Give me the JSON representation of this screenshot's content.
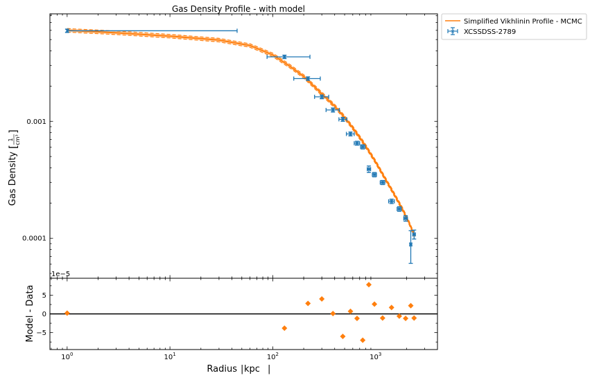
{
  "chart_data": [
    {
      "type": "scatter",
      "title": "Gas Density Profile - with model",
      "xlabel": "",
      "ylabel_main": "Gas Density",
      "ylabel_frac_num": "1",
      "ylabel_frac_den": "cm³",
      "xscale": "log",
      "yscale": "log",
      "xlim": [
        0.68,
        4000
      ],
      "ylim": [
        4.55e-05,
        0.0083
      ],
      "y_ticks": [
        {
          "value": 0.0001,
          "label": "0.0001"
        },
        {
          "value": 0.001,
          "label": "0.001"
        }
      ],
      "offset_label": "1e−5",
      "legend_position": "outside-top-right",
      "legend": {
        "model_label": "Simplified Vikhlinin Profile - MCMC",
        "data_label": "XCSSDSS-2789"
      },
      "colors": {
        "data": "#1f77b4",
        "model": "#ff7f0e",
        "axis": "#000000"
      },
      "data_series": {
        "name": "XCSSDSS-2789",
        "points": [
          {
            "x": 1.0,
            "y": 0.00595,
            "xlo": 1.0,
            "xhi": 45,
            "ylo": 0.00575,
            "yhi": 0.00615
          },
          {
            "x": 130,
            "y": 0.00356,
            "xlo": 88,
            "xhi": 230,
            "ylo": 0.00344,
            "yhi": 0.00368
          },
          {
            "x": 220,
            "y": 0.00232,
            "xlo": 160,
            "xhi": 290,
            "ylo": 0.00224,
            "yhi": 0.0024
          },
          {
            "x": 300,
            "y": 0.00162,
            "xlo": 255,
            "xhi": 350,
            "ylo": 0.00156,
            "yhi": 0.00168
          },
          {
            "x": 385,
            "y": 0.00125,
            "xlo": 330,
            "xhi": 445,
            "ylo": 0.0012,
            "yhi": 0.0013
          },
          {
            "x": 480,
            "y": 0.00104,
            "xlo": 440,
            "xhi": 525,
            "ylo": 0.001,
            "yhi": 0.00108
          },
          {
            "x": 570,
            "y": 0.00078,
            "xlo": 520,
            "xhi": 620,
            "ylo": 0.00075,
            "yhi": 0.00081
          },
          {
            "x": 660,
            "y": 0.00065,
            "xlo": 620,
            "xhi": 700,
            "ylo": 0.000625,
            "yhi": 0.000675
          },
          {
            "x": 750,
            "y": 0.000605,
            "xlo": 715,
            "xhi": 790,
            "ylo": 0.00058,
            "yhi": 0.00063
          },
          {
            "x": 860,
            "y": 0.00039,
            "xlo": 830,
            "xhi": 895,
            "ylo": 0.000365,
            "yhi": 0.000415
          },
          {
            "x": 975,
            "y": 0.00035,
            "xlo": 930,
            "xhi": 1020,
            "ylo": 0.000335,
            "yhi": 0.000365
          },
          {
            "x": 1170,
            "y": 0.0003,
            "xlo": 1110,
            "xhi": 1230,
            "ylo": 0.000288,
            "yhi": 0.000312
          },
          {
            "x": 1430,
            "y": 0.000207,
            "xlo": 1340,
            "xhi": 1520,
            "ylo": 0.000198,
            "yhi": 0.000216
          },
          {
            "x": 1700,
            "y": 0.000178,
            "xlo": 1620,
            "xhi": 1780,
            "ylo": 0.00017,
            "yhi": 0.000186
          },
          {
            "x": 1960,
            "y": 0.000148,
            "xlo": 1880,
            "xhi": 2040,
            "ylo": 0.00014,
            "yhi": 0.000156
          },
          {
            "x": 2200,
            "y": 8.85e-05,
            "xlo": 2150,
            "xhi": 2250,
            "ylo": 6.1e-05,
            "yhi": 0.000116
          },
          {
            "x": 2370,
            "y": 0.000108,
            "xlo": 2300,
            "xhi": 2440,
            "ylo": 9.85e-05,
            "yhi": 0.0001175
          }
        ]
      },
      "model_series": {
        "name": "Simplified Vikhlinin Profile - MCMC",
        "x": [
          1.0,
          3,
          10,
          30,
          60,
          100,
          150,
          200,
          300,
          400,
          500,
          600,
          700,
          800,
          1000,
          1200,
          1500,
          1800,
          2100,
          2400
        ],
        "y": [
          0.006,
          0.00572,
          0.00535,
          0.00495,
          0.00445,
          0.0037,
          0.00292,
          0.00242,
          0.00172,
          0.00135,
          0.00108,
          0.00088,
          0.00073,
          0.000615,
          0.00045,
          0.00034,
          0.000242,
          0.000182,
          0.000138,
          0.000104
        ],
        "band_lo_factor": 0.965,
        "band_hi_factor": 1.035
      }
    },
    {
      "type": "scatter",
      "title": "",
      "xlabel": "Radius",
      "xlabel_unit": "kpc",
      "ylabel": "Model - Data",
      "xscale": "log",
      "xlim": [
        0.68,
        4000
      ],
      "ylim": [
        -9.5,
        9.5
      ],
      "x_ticks": [
        {
          "value": 1,
          "base": "10",
          "exp": "0"
        },
        {
          "value": 10,
          "base": "10",
          "exp": "1"
        },
        {
          "value": 100,
          "base": "10",
          "exp": "2"
        },
        {
          "value": 1000,
          "base": "10",
          "exp": "3"
        }
      ],
      "y_ticks": [
        {
          "value": 5,
          "label": "5"
        },
        {
          "value": 0,
          "label": "0"
        },
        {
          "value": -5,
          "label": "−5"
        }
      ],
      "zero_line": 0,
      "residual_points": [
        {
          "x": 1.0,
          "y": 0.2
        },
        {
          "x": 130,
          "y": -3.8
        },
        {
          "x": 220,
          "y": 2.8
        },
        {
          "x": 300,
          "y": 4.0
        },
        {
          "x": 385,
          "y": 0.1
        },
        {
          "x": 480,
          "y": -6.0
        },
        {
          "x": 570,
          "y": 0.7
        },
        {
          "x": 660,
          "y": -1.2
        },
        {
          "x": 750,
          "y": -7.0
        },
        {
          "x": 860,
          "y": 7.8
        },
        {
          "x": 975,
          "y": 2.6
        },
        {
          "x": 1170,
          "y": -1.1
        },
        {
          "x": 1430,
          "y": 1.7
        },
        {
          "x": 1700,
          "y": -0.6
        },
        {
          "x": 1960,
          "y": -1.2
        },
        {
          "x": 2200,
          "y": 2.2
        },
        {
          "x": 2370,
          "y": -1.1
        }
      ]
    }
  ]
}
